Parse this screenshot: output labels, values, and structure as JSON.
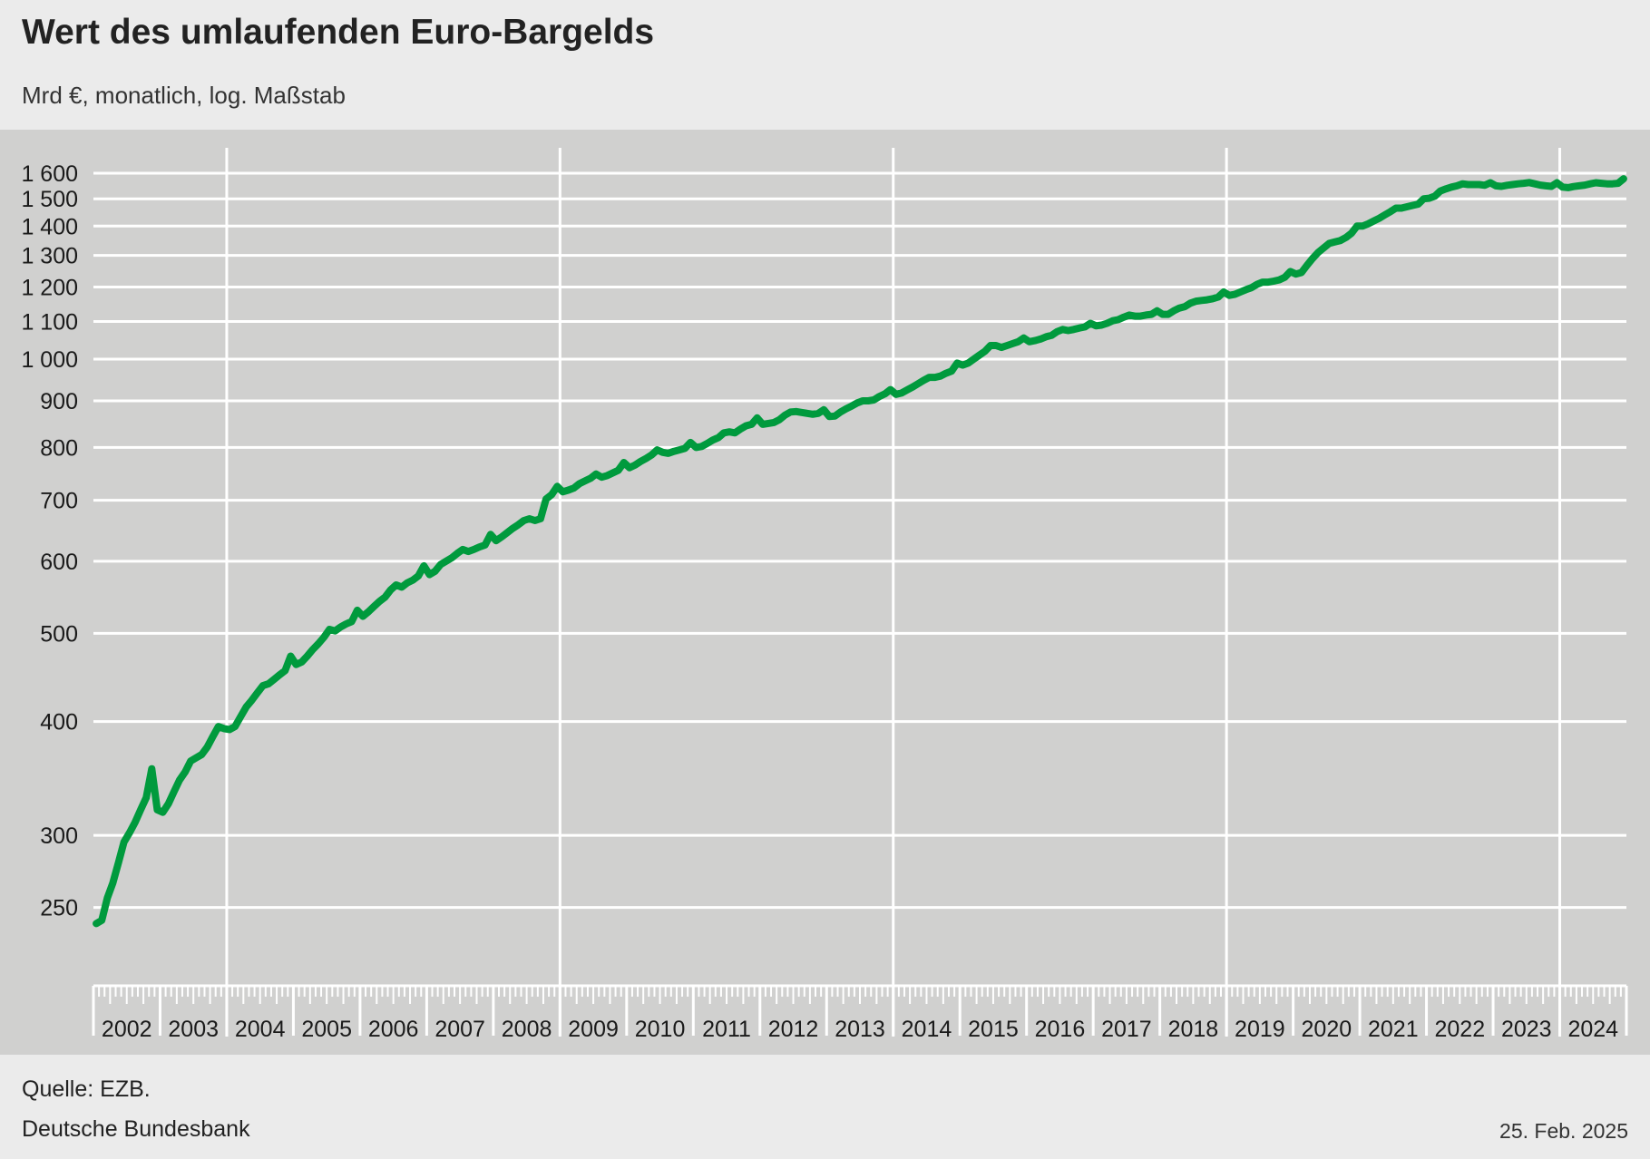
{
  "header": {
    "title": "Wert des umlaufenden Euro-Bargelds",
    "subtitle": "Mrd €, monatlich, log. Maßstab"
  },
  "footer": {
    "source": "Quelle: EZB.",
    "publisher": "Deutsche Bundesbank",
    "date": "25. Feb. 2025"
  },
  "colors": {
    "series": "#009a3d",
    "plot_background": "#d0d0cf",
    "page_background": "#ebebeb",
    "grid": "#ffffff"
  },
  "chart_data": {
    "type": "line",
    "title": "Wert des umlaufenden Euro-Bargelds",
    "subtitle": "Mrd €, monatlich, log. Maßstab",
    "y_scale": "log",
    "ylim": [
      230,
      1660
    ],
    "xlim": [
      "2002-01",
      "2024-12"
    ],
    "grid": true,
    "y_ticks": [
      250,
      300,
      400,
      500,
      600,
      700,
      800,
      900,
      1000,
      1100,
      1200,
      1300,
      1400,
      1500,
      1600
    ],
    "y_tick_labels": [
      "250",
      "300",
      "400",
      "500",
      "600",
      "700",
      "800",
      "900",
      "1 000",
      "1 100",
      "1 200",
      "1 300",
      "1 400",
      "1 500",
      "1 600"
    ],
    "x_tick_labels": [
      "2002",
      "2003",
      "2004",
      "2005",
      "2006",
      "2007",
      "2008",
      "2009",
      "2010",
      "2011",
      "2012",
      "2013",
      "2014",
      "2015",
      "2016",
      "2017",
      "2018",
      "2019",
      "2020",
      "2021",
      "2022",
      "2023",
      "2024"
    ],
    "x_major_grid_years": [
      2004,
      2009,
      2014,
      2019,
      2024
    ],
    "series": [
      {
        "points": [
          [
            "2002-01",
            240
          ],
          [
            "2002-02",
            242
          ],
          [
            "2002-03",
            256
          ],
          [
            "2002-04",
            266
          ],
          [
            "2002-05",
            280
          ],
          [
            "2002-06",
            295
          ],
          [
            "2002-07",
            302
          ],
          [
            "2002-08",
            310
          ],
          [
            "2002-09",
            320
          ],
          [
            "2002-10",
            330
          ],
          [
            "2002-11",
            355
          ],
          [
            "2002-12",
            320
          ],
          [
            "2003-01",
            318
          ],
          [
            "2003-02",
            325
          ],
          [
            "2003-03",
            335
          ],
          [
            "2003-04",
            345
          ],
          [
            "2003-05",
            352
          ],
          [
            "2003-06",
            362
          ],
          [
            "2003-07",
            365
          ],
          [
            "2003-08",
            368
          ],
          [
            "2003-09",
            375
          ],
          [
            "2003-10",
            385
          ],
          [
            "2003-11",
            395
          ],
          [
            "2003-12",
            393
          ],
          [
            "2004-01",
            392
          ],
          [
            "2004-02",
            395
          ],
          [
            "2004-03",
            405
          ],
          [
            "2004-04",
            415
          ],
          [
            "2004-05",
            422
          ],
          [
            "2004-06",
            430
          ],
          [
            "2004-07",
            438
          ],
          [
            "2004-08",
            440
          ],
          [
            "2004-09",
            445
          ],
          [
            "2004-10",
            450
          ],
          [
            "2004-11",
            455
          ],
          [
            "2004-12",
            472
          ],
          [
            "2005-01",
            462
          ],
          [
            "2005-02",
            465
          ],
          [
            "2005-03",
            472
          ],
          [
            "2005-04",
            480
          ],
          [
            "2005-05",
            487
          ],
          [
            "2005-06",
            495
          ],
          [
            "2005-07",
            505
          ],
          [
            "2005-08",
            503
          ],
          [
            "2005-09",
            508
          ],
          [
            "2005-10",
            512
          ],
          [
            "2005-11",
            515
          ],
          [
            "2005-12",
            530
          ],
          [
            "2006-01",
            522
          ],
          [
            "2006-02",
            528
          ],
          [
            "2006-03",
            535
          ],
          [
            "2006-04",
            542
          ],
          [
            "2006-05",
            548
          ],
          [
            "2006-06",
            558
          ],
          [
            "2006-07",
            565
          ],
          [
            "2006-08",
            562
          ],
          [
            "2006-09",
            568
          ],
          [
            "2006-10",
            572
          ],
          [
            "2006-11",
            578
          ],
          [
            "2006-12",
            593
          ],
          [
            "2007-01",
            580
          ],
          [
            "2007-02",
            585
          ],
          [
            "2007-03",
            595
          ],
          [
            "2007-04",
            600
          ],
          [
            "2007-05",
            605
          ],
          [
            "2007-06",
            612
          ],
          [
            "2007-07",
            618
          ],
          [
            "2007-08",
            615
          ],
          [
            "2007-09",
            618
          ],
          [
            "2007-10",
            622
          ],
          [
            "2007-11",
            625
          ],
          [
            "2007-12",
            642
          ],
          [
            "2008-01",
            632
          ],
          [
            "2008-02",
            638
          ],
          [
            "2008-03",
            645
          ],
          [
            "2008-04",
            652
          ],
          [
            "2008-05",
            658
          ],
          [
            "2008-06",
            665
          ],
          [
            "2008-07",
            668
          ],
          [
            "2008-08",
            665
          ],
          [
            "2008-09",
            668
          ],
          [
            "2008-10",
            702
          ],
          [
            "2008-11",
            710
          ],
          [
            "2008-12",
            725
          ],
          [
            "2009-01",
            715
          ],
          [
            "2009-02",
            718
          ],
          [
            "2009-03",
            722
          ],
          [
            "2009-04",
            730
          ],
          [
            "2009-05",
            735
          ],
          [
            "2009-06",
            740
          ],
          [
            "2009-07",
            748
          ],
          [
            "2009-08",
            742
          ],
          [
            "2009-09",
            745
          ],
          [
            "2009-10",
            750
          ],
          [
            "2009-11",
            755
          ],
          [
            "2009-12",
            770
          ],
          [
            "2010-01",
            760
          ],
          [
            "2010-02",
            765
          ],
          [
            "2010-03",
            772
          ],
          [
            "2010-04",
            778
          ],
          [
            "2010-05",
            785
          ],
          [
            "2010-06",
            795
          ],
          [
            "2010-07",
            790
          ],
          [
            "2010-08",
            788
          ],
          [
            "2010-09",
            792
          ],
          [
            "2010-10",
            795
          ],
          [
            "2010-11",
            798
          ],
          [
            "2010-12",
            810
          ],
          [
            "2011-01",
            800
          ],
          [
            "2011-02",
            802
          ],
          [
            "2011-03",
            808
          ],
          [
            "2011-04",
            815
          ],
          [
            "2011-05",
            820
          ],
          [
            "2011-06",
            830
          ],
          [
            "2011-07",
            832
          ],
          [
            "2011-08",
            830
          ],
          [
            "2011-09",
            838
          ],
          [
            "2011-10",
            845
          ],
          [
            "2011-11",
            848
          ],
          [
            "2011-12",
            862
          ],
          [
            "2012-01",
            848
          ],
          [
            "2012-02",
            850
          ],
          [
            "2012-03",
            852
          ],
          [
            "2012-04",
            858
          ],
          [
            "2012-05",
            868
          ],
          [
            "2012-06",
            875
          ],
          [
            "2012-07",
            876
          ],
          [
            "2012-08",
            874
          ],
          [
            "2012-09",
            872
          ],
          [
            "2012-10",
            870
          ],
          [
            "2012-11",
            872
          ],
          [
            "2012-12",
            880
          ],
          [
            "2013-01",
            865
          ],
          [
            "2013-02",
            866
          ],
          [
            "2013-03",
            875
          ],
          [
            "2013-04",
            882
          ],
          [
            "2013-05",
            888
          ],
          [
            "2013-06",
            895
          ],
          [
            "2013-07",
            900
          ],
          [
            "2013-08",
            900
          ],
          [
            "2013-09",
            902
          ],
          [
            "2013-10",
            910
          ],
          [
            "2013-11",
            916
          ],
          [
            "2013-12",
            926
          ],
          [
            "2014-01",
            915
          ],
          [
            "2014-02",
            918
          ],
          [
            "2014-03",
            925
          ],
          [
            "2014-04",
            932
          ],
          [
            "2014-05",
            940
          ],
          [
            "2014-06",
            948
          ],
          [
            "2014-07",
            955
          ],
          [
            "2014-08",
            955
          ],
          [
            "2014-09",
            958
          ],
          [
            "2014-10",
            965
          ],
          [
            "2014-11",
            970
          ],
          [
            "2014-12",
            990
          ],
          [
            "2015-01",
            985
          ],
          [
            "2015-02",
            990
          ],
          [
            "2015-03",
            1000
          ],
          [
            "2015-04",
            1010
          ],
          [
            "2015-05",
            1020
          ],
          [
            "2015-06",
            1035
          ],
          [
            "2015-07",
            1035
          ],
          [
            "2015-08",
            1030
          ],
          [
            "2015-09",
            1035
          ],
          [
            "2015-10",
            1040
          ],
          [
            "2015-11",
            1045
          ],
          [
            "2015-12",
            1055
          ],
          [
            "2016-01",
            1045
          ],
          [
            "2016-02",
            1048
          ],
          [
            "2016-03",
            1052
          ],
          [
            "2016-04",
            1058
          ],
          [
            "2016-05",
            1062
          ],
          [
            "2016-06",
            1072
          ],
          [
            "2016-07",
            1078
          ],
          [
            "2016-08",
            1075
          ],
          [
            "2016-09",
            1078
          ],
          [
            "2016-10",
            1082
          ],
          [
            "2016-11",
            1085
          ],
          [
            "2016-12",
            1095
          ],
          [
            "2017-01",
            1088
          ],
          [
            "2017-02",
            1090
          ],
          [
            "2017-03",
            1095
          ],
          [
            "2017-04",
            1102
          ],
          [
            "2017-05",
            1105
          ],
          [
            "2017-06",
            1112
          ],
          [
            "2017-07",
            1118
          ],
          [
            "2017-08",
            1115
          ],
          [
            "2017-09",
            1115
          ],
          [
            "2017-10",
            1118
          ],
          [
            "2017-11",
            1120
          ],
          [
            "2017-12",
            1130
          ],
          [
            "2018-01",
            1120
          ],
          [
            "2018-02",
            1120
          ],
          [
            "2018-03",
            1130
          ],
          [
            "2018-04",
            1138
          ],
          [
            "2018-05",
            1142
          ],
          [
            "2018-06",
            1152
          ],
          [
            "2018-07",
            1158
          ],
          [
            "2018-08",
            1160
          ],
          [
            "2018-09",
            1162
          ],
          [
            "2018-10",
            1165
          ],
          [
            "2018-11",
            1170
          ],
          [
            "2018-12",
            1185
          ],
          [
            "2019-01",
            1175
          ],
          [
            "2019-02",
            1178
          ],
          [
            "2019-03",
            1185
          ],
          [
            "2019-04",
            1192
          ],
          [
            "2019-05",
            1198
          ],
          [
            "2019-06",
            1208
          ],
          [
            "2019-07",
            1215
          ],
          [
            "2019-08",
            1215
          ],
          [
            "2019-09",
            1218
          ],
          [
            "2019-10",
            1222
          ],
          [
            "2019-11",
            1230
          ],
          [
            "2019-12",
            1248
          ],
          [
            "2020-01",
            1240
          ],
          [
            "2020-02",
            1245
          ],
          [
            "2020-03",
            1268
          ],
          [
            "2020-04",
            1290
          ],
          [
            "2020-05",
            1310
          ],
          [
            "2020-06",
            1325
          ],
          [
            "2020-07",
            1340
          ],
          [
            "2020-08",
            1345
          ],
          [
            "2020-09",
            1350
          ],
          [
            "2020-10",
            1360
          ],
          [
            "2020-11",
            1375
          ],
          [
            "2020-12",
            1400
          ],
          [
            "2021-01",
            1400
          ],
          [
            "2021-02",
            1408
          ],
          [
            "2021-03",
            1418
          ],
          [
            "2021-04",
            1428
          ],
          [
            "2021-05",
            1440
          ],
          [
            "2021-06",
            1452
          ],
          [
            "2021-07",
            1465
          ],
          [
            "2021-08",
            1465
          ],
          [
            "2021-09",
            1470
          ],
          [
            "2021-10",
            1475
          ],
          [
            "2021-11",
            1480
          ],
          [
            "2021-12",
            1500
          ],
          [
            "2022-01",
            1502
          ],
          [
            "2022-02",
            1510
          ],
          [
            "2022-03",
            1530
          ],
          [
            "2022-04",
            1538
          ],
          [
            "2022-05",
            1545
          ],
          [
            "2022-06",
            1550
          ],
          [
            "2022-07",
            1558
          ],
          [
            "2022-08",
            1555
          ],
          [
            "2022-09",
            1555
          ],
          [
            "2022-10",
            1555
          ],
          [
            "2022-11",
            1552
          ],
          [
            "2022-12",
            1562
          ],
          [
            "2023-01",
            1550
          ],
          [
            "2023-02",
            1548
          ],
          [
            "2023-03",
            1552
          ],
          [
            "2023-04",
            1555
          ],
          [
            "2023-05",
            1558
          ],
          [
            "2023-06",
            1560
          ],
          [
            "2023-07",
            1563
          ],
          [
            "2023-08",
            1558
          ],
          [
            "2023-09",
            1553
          ],
          [
            "2023-10",
            1550
          ],
          [
            "2023-11",
            1548
          ],
          [
            "2023-12",
            1562
          ],
          [
            "2024-01",
            1545
          ],
          [
            "2024-02",
            1543
          ],
          [
            "2024-03",
            1547
          ],
          [
            "2024-04",
            1550
          ],
          [
            "2024-05",
            1553
          ],
          [
            "2024-06",
            1558
          ],
          [
            "2024-07",
            1562
          ],
          [
            "2024-08",
            1560
          ],
          [
            "2024-09",
            1558
          ],
          [
            "2024-10",
            1558
          ],
          [
            "2024-11",
            1560
          ],
          [
            "2024-12",
            1578
          ]
        ]
      }
    ]
  }
}
